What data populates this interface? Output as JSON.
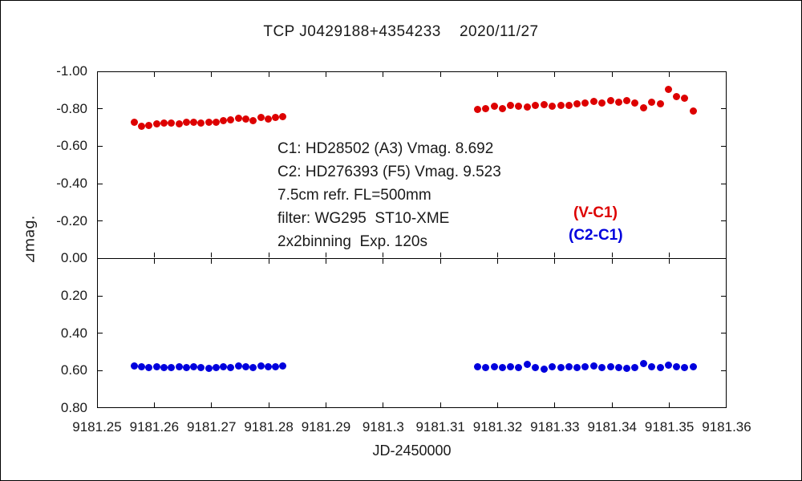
{
  "title": "TCP J0429188+4354233    2020/11/27",
  "legend": {
    "red_label": "(V-C1)",
    "blue_label": "(C2-C1)"
  },
  "annotations": [
    "C1: HD28502 (A3) Vmag. 8.692",
    "C2: HD276393 (F5) Vmag. 9.523",
    "7.5cm refr. FL=500mm",
    "filter: WG295  ST10-XME",
    "2x2binning  Exp. 120s"
  ],
  "colors": {
    "red": "#dd0000",
    "blue": "#0000dd",
    "axis": "#000000"
  },
  "chart_data": {
    "type": "scatter",
    "title": "TCP J0429188+4354233    2020/11/27",
    "xlabel": "JD-2450000",
    "ylabel": "⊿mag.",
    "xlim": [
      9181.25,
      9181.36
    ],
    "ylim_display": [
      -1.0,
      0.8
    ],
    "y_inverted": true,
    "panel_split_y": 0.0,
    "grid": false,
    "legend_position": "right-middle",
    "x_ticks": [
      9181.25,
      9181.26,
      9181.27,
      9181.28,
      9181.29,
      9181.3,
      9181.31,
      9181.32,
      9181.33,
      9181.34,
      9181.35,
      9181.36
    ],
    "x_tick_labels": [
      "9181.25",
      "9181.26",
      "9181.27",
      "9181.28",
      "9181.29",
      "9181.3",
      "9181.31",
      "9181.32",
      "9181.33",
      "9181.34",
      "9181.35",
      "9181.36"
    ],
    "y_ticks": [
      -1.0,
      -0.8,
      -0.6,
      -0.4,
      -0.2,
      0.0,
      0.2,
      0.4,
      0.6,
      0.8
    ],
    "y_tick_labels": [
      "-1.00",
      "-0.80",
      "-0.60",
      "-0.40",
      "-0.20",
      "0.00",
      "0.20",
      "0.40",
      "0.60",
      "0.80"
    ],
    "series": [
      {
        "name": "(V-C1)",
        "color": "#dd0000",
        "points": [
          [
            9181.2565,
            -0.73
          ],
          [
            9181.2578,
            -0.706
          ],
          [
            9181.2591,
            -0.71
          ],
          [
            9181.2604,
            -0.718
          ],
          [
            9181.2617,
            -0.722
          ],
          [
            9181.263,
            -0.724
          ],
          [
            9181.2643,
            -0.72
          ],
          [
            9181.2656,
            -0.726
          ],
          [
            9181.2669,
            -0.73
          ],
          [
            9181.2682,
            -0.722
          ],
          [
            9181.2695,
            -0.726
          ],
          [
            9181.2708,
            -0.73
          ],
          [
            9181.2721,
            -0.736
          ],
          [
            9181.2734,
            -0.74
          ],
          [
            9181.2747,
            -0.75
          ],
          [
            9181.276,
            -0.744
          ],
          [
            9181.2773,
            -0.738
          ],
          [
            9181.2786,
            -0.754
          ],
          [
            9181.2799,
            -0.746
          ],
          [
            9181.2812,
            -0.752
          ],
          [
            9181.2825,
            -0.758
          ],
          [
            9181.3165,
            -0.796
          ],
          [
            9181.3179,
            -0.8
          ],
          [
            9181.3194,
            -0.812
          ],
          [
            9181.3208,
            -0.802
          ],
          [
            9181.3223,
            -0.818
          ],
          [
            9181.3237,
            -0.812
          ],
          [
            9181.3252,
            -0.81
          ],
          [
            9181.3266,
            -0.816
          ],
          [
            9181.3281,
            -0.822
          ],
          [
            9181.3295,
            -0.812
          ],
          [
            9181.331,
            -0.818
          ],
          [
            9181.3324,
            -0.82
          ],
          [
            9181.3339,
            -0.826
          ],
          [
            9181.3353,
            -0.832
          ],
          [
            9181.3368,
            -0.838
          ],
          [
            9181.3382,
            -0.832
          ],
          [
            9181.3397,
            -0.842
          ],
          [
            9181.3411,
            -0.836
          ],
          [
            9181.3426,
            -0.842
          ],
          [
            9181.344,
            -0.83
          ],
          [
            9181.3455,
            -0.806
          ],
          [
            9181.3469,
            -0.836
          ],
          [
            9181.3484,
            -0.828
          ],
          [
            9181.3498,
            -0.902
          ],
          [
            9181.3513,
            -0.864
          ],
          [
            9181.3527,
            -0.856
          ],
          [
            9181.3542,
            -0.786
          ]
        ]
      },
      {
        "name": "(C2-C1)",
        "color": "#0000dd",
        "points": [
          [
            9181.2565,
            0.576
          ],
          [
            9181.2578,
            0.58
          ],
          [
            9181.2591,
            0.584
          ],
          [
            9181.2604,
            0.579
          ],
          [
            9181.2617,
            0.583
          ],
          [
            9181.263,
            0.585
          ],
          [
            9181.2643,
            0.58
          ],
          [
            9181.2656,
            0.584
          ],
          [
            9181.2669,
            0.579
          ],
          [
            9181.2682,
            0.585
          ],
          [
            9181.2695,
            0.589
          ],
          [
            9181.2708,
            0.584
          ],
          [
            9181.2721,
            0.58
          ],
          [
            9181.2734,
            0.585
          ],
          [
            9181.2747,
            0.576
          ],
          [
            9181.276,
            0.58
          ],
          [
            9181.2773,
            0.582
          ],
          [
            9181.2786,
            0.577
          ],
          [
            9181.2799,
            0.581
          ],
          [
            9181.2812,
            0.58
          ],
          [
            9181.2825,
            0.576
          ],
          [
            9181.3165,
            0.578
          ],
          [
            9181.3179,
            0.582
          ],
          [
            9181.3194,
            0.579
          ],
          [
            9181.3208,
            0.584
          ],
          [
            9181.3223,
            0.58
          ],
          [
            9181.3237,
            0.585
          ],
          [
            9181.3252,
            0.566
          ],
          [
            9181.3266,
            0.582
          ],
          [
            9181.3281,
            0.594
          ],
          [
            9181.3295,
            0.58
          ],
          [
            9181.331,
            0.585
          ],
          [
            9181.3324,
            0.579
          ],
          [
            9181.3339,
            0.584
          ],
          [
            9181.3353,
            0.58
          ],
          [
            9181.3368,
            0.577
          ],
          [
            9181.3382,
            0.583
          ],
          [
            9181.3397,
            0.579
          ],
          [
            9181.3411,
            0.584
          ],
          [
            9181.3426,
            0.588
          ],
          [
            9181.344,
            0.582
          ],
          [
            9181.3455,
            0.562
          ],
          [
            9181.3469,
            0.58
          ],
          [
            9181.3484,
            0.585
          ],
          [
            9181.3498,
            0.57
          ],
          [
            9181.3513,
            0.578
          ],
          [
            9181.3527,
            0.583
          ],
          [
            9181.3542,
            0.58
          ]
        ]
      }
    ]
  }
}
